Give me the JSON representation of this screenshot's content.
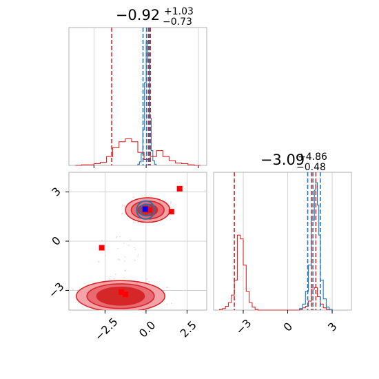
{
  "chart_data": [
    {
      "panel": "hist-top",
      "type": "histogram",
      "title": {
        "value": "−0.92",
        "plus": "+1.03",
        "minus": "−0.73"
      },
      "xlim": [
        -3.7,
        2.9
      ],
      "grid": true,
      "series": [
        {
          "name": "",
          "color": "#d62728",
          "bin_edges": [
            -3.4,
            -3.1,
            -2.8,
            -2.5,
            -2.2,
            -1.9,
            -1.6,
            -1.3,
            -1.0,
            -0.7,
            -0.4,
            -0.1,
            0.2,
            0.5,
            0.8,
            1.1,
            1.4,
            1.7,
            2.0,
            2.3,
            2.6
          ],
          "counts": [
            0,
            1,
            1,
            3,
            5,
            15,
            30,
            40,
            45,
            40,
            22,
            10,
            15,
            25,
            15,
            8,
            4,
            3,
            1,
            0
          ],
          "quantile_lines": [
            -1.65,
            0.11,
            0.2
          ]
        },
        {
          "name": "",
          "color": "#1f77b4",
          "bin_edges": [
            -0.4,
            -0.32,
            -0.24,
            -0.16,
            -0.08,
            0.0,
            0.08,
            0.16,
            0.24,
            0.32,
            0.4,
            0.48
          ],
          "counts": [
            2,
            6,
            20,
            60,
            140,
            210,
            175,
            80,
            25,
            8,
            2
          ],
          "quantile_lines": [
            -0.15,
            0.02,
            0.15
          ]
        }
      ]
    },
    {
      "panel": "hist-right",
      "type": "histogram",
      "title": {
        "value": "−3.09",
        "plus": "+4.86",
        "minus": "−0.48"
      },
      "xlim": [
        -5.0,
        4.3
      ],
      "xticks": [
        -3,
        0,
        3
      ],
      "xtick_labels": [
        "−3",
        "0",
        "3"
      ],
      "grid": true,
      "series": [
        {
          "name": "",
          "color": "#d62728",
          "bin_edges": [
            -4.6,
            -4.4,
            -4.2,
            -4.0,
            -3.8,
            -3.6,
            -3.4,
            -3.2,
            -3.0,
            -2.8,
            -2.6,
            -2.4,
            -2.2,
            -2.0,
            0.6,
            0.8,
            1.0,
            1.2,
            1.4,
            1.6,
            1.8,
            2.0,
            2.2,
            2.4,
            2.6,
            2.8
          ],
          "counts": [
            1,
            2,
            5,
            10,
            20,
            40,
            100,
            95,
            60,
            25,
            10,
            4,
            1,
            0,
            0,
            1,
            3,
            5,
            12,
            28,
            30,
            18,
            8,
            3,
            1
          ],
          "quantile_lines": [
            -3.6,
            1.6,
            1.9
          ]
        },
        {
          "name": "",
          "color": "#1f77b4",
          "bin_edges": [
            0.8,
            1.0,
            1.2,
            1.4,
            1.6,
            1.8,
            1.9,
            2.0,
            2.1,
            2.2,
            2.4,
            2.6,
            2.8,
            3.0
          ],
          "counts": [
            2,
            8,
            25,
            60,
            120,
            160,
            170,
            140,
            100,
            40,
            15,
            4,
            1
          ],
          "quantile_lines": [
            1.35,
            1.7,
            2.2
          ]
        }
      ]
    },
    {
      "panel": "scatter-2d",
      "type": "scatter",
      "xlim": [
        -4.7,
        3.7
      ],
      "ylim": [
        -4.2,
        4.2
      ],
      "xticks": [
        -2.5,
        0.0,
        2.5
      ],
      "xtick_labels": [
        "−2.5",
        "0.0",
        "2.5"
      ],
      "yticks": [
        3,
        0,
        -3
      ],
      "ytick_labels": [
        "3",
        "0",
        "−3"
      ],
      "grid": true,
      "red_density_blobs": [
        {
          "center": [
            -1.55,
            -3.35
          ],
          "radii": [
            [
              2.7,
              0.95
            ],
            [
              2.05,
              0.75
            ],
            [
              1.45,
              0.55
            ]
          ]
        },
        {
          "center": [
            0.1,
            1.9
          ],
          "radii": [
            [
              1.35,
              0.75
            ],
            [
              1.0,
              0.55
            ],
            [
              0.6,
              0.35
            ]
          ]
        }
      ],
      "blue_density_blob": {
        "center": [
          -0.02,
          1.9
        ],
        "radii": [
          [
            0.55,
            0.55
          ],
          [
            0.35,
            0.35
          ]
        ]
      },
      "red_markers": [
        [
          -2.7,
          -0.4
        ],
        [
          -1.5,
          -3.1
        ],
        [
          -1.25,
          -3.25
        ],
        [
          1.55,
          1.8
        ],
        [
          2.05,
          3.2
        ],
        [
          0.2,
          1.9
        ]
      ],
      "blue_marker": [
        -0.05,
        1.95
      ],
      "colors": {
        "red": "#d62728",
        "red_light": "#f4a3a8",
        "red_fill": "#e86a72",
        "blue": "#1f77b4",
        "marker_blue": "#0000ff",
        "marker_red": "#ff0000"
      }
    }
  ]
}
